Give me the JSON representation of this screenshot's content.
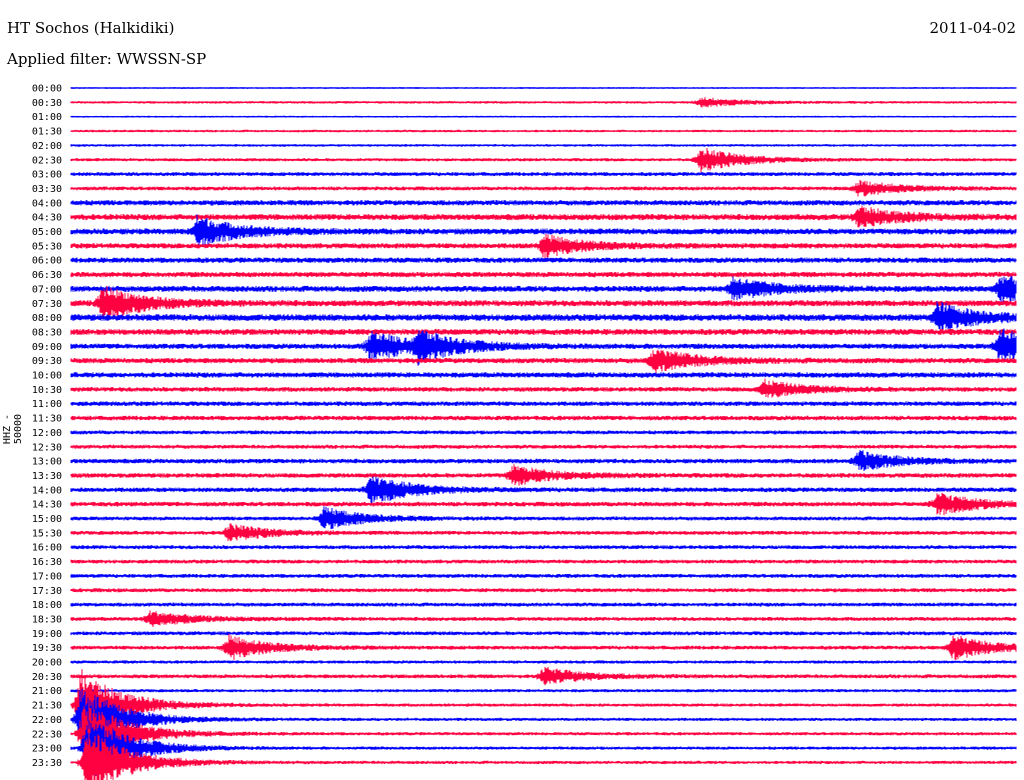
{
  "header": {
    "station": "HT Sochos (Halkidiki)",
    "date": "2011-04-02",
    "filter_label": "Applied filter: WWSSN-SP"
  },
  "channel_label": "HHZ - 50000",
  "colors": {
    "even_row": "#0000ff",
    "odd_row": "#ff0040"
  },
  "chart_data": {
    "type": "helicorder",
    "title": "HT Sochos (Halkidiki)",
    "ylabel": "HHZ - 50000",
    "row_interval_minutes": 30,
    "rows": [
      "00:00",
      "00:30",
      "01:00",
      "01:30",
      "02:00",
      "02:30",
      "03:00",
      "03:30",
      "04:00",
      "04:30",
      "05:00",
      "05:30",
      "06:00",
      "06:30",
      "07:00",
      "07:30",
      "08:00",
      "08:30",
      "09:00",
      "09:30",
      "10:00",
      "10:30",
      "11:00",
      "11:30",
      "12:00",
      "12:30",
      "13:00",
      "13:30",
      "14:00",
      "14:30",
      "15:00",
      "15:30",
      "16:00",
      "16:30",
      "17:00",
      "17:30",
      "18:00",
      "18:30",
      "19:00",
      "19:30",
      "20:00",
      "20:30",
      "21:00",
      "21:30",
      "22:00",
      "22:30",
      "23:00",
      "23:30"
    ],
    "noise_level": [
      0.1,
      0.2,
      0.1,
      0.2,
      0.2,
      0.3,
      0.4,
      0.4,
      0.6,
      0.7,
      0.7,
      0.6,
      0.6,
      0.6,
      0.7,
      0.7,
      0.8,
      0.7,
      0.6,
      0.6,
      0.6,
      0.5,
      0.5,
      0.5,
      0.4,
      0.4,
      0.5,
      0.5,
      0.5,
      0.5,
      0.4,
      0.4,
      0.4,
      0.4,
      0.4,
      0.4,
      0.4,
      0.4,
      0.4,
      0.4,
      0.3,
      0.4,
      0.3,
      0.3,
      0.3,
      0.3,
      0.3,
      0.3
    ],
    "events": [
      {
        "row": "00:30",
        "minute": 20,
        "amplitude": 0.4
      },
      {
        "row": "02:30",
        "minute": 20,
        "amplitude": 1.0
      },
      {
        "row": "03:30",
        "minute": 25,
        "amplitude": 0.6
      },
      {
        "row": "04:30",
        "minute": 25,
        "amplitude": 0.8
      },
      {
        "row": "05:00",
        "minute": 4,
        "amplitude": 1.2
      },
      {
        "row": "05:30",
        "minute": 15,
        "amplitude": 0.9
      },
      {
        "row": "07:00",
        "minute": 21,
        "amplitude": 0.9
      },
      {
        "row": "07:00",
        "minute": 29.5,
        "amplitude": 1.1
      },
      {
        "row": "07:30",
        "minute": 1,
        "amplitude": 1.4
      },
      {
        "row": "08:00",
        "minute": 27.5,
        "amplitude": 1.2
      },
      {
        "row": "09:00",
        "minute": 9.5,
        "amplitude": 1.3
      },
      {
        "row": "09:00",
        "minute": 11,
        "amplitude": 1.1
      },
      {
        "row": "09:00",
        "minute": 29.5,
        "amplitude": 1.5
      },
      {
        "row": "09:30",
        "minute": 18.5,
        "amplitude": 1.0
      },
      {
        "row": "10:30",
        "minute": 22,
        "amplitude": 0.7
      },
      {
        "row": "13:00",
        "minute": 25,
        "amplitude": 0.8
      },
      {
        "row": "13:30",
        "minute": 14,
        "amplitude": 0.8
      },
      {
        "row": "14:00",
        "minute": 9.5,
        "amplitude": 1.2
      },
      {
        "row": "14:30",
        "minute": 27.5,
        "amplitude": 0.9
      },
      {
        "row": "15:00",
        "minute": 8,
        "amplitude": 0.9
      },
      {
        "row": "15:30",
        "minute": 5,
        "amplitude": 0.7
      },
      {
        "row": "18:30",
        "minute": 2.5,
        "amplitude": 0.6
      },
      {
        "row": "19:30",
        "minute": 5,
        "amplitude": 1.0
      },
      {
        "row": "19:30",
        "minute": 28,
        "amplitude": 1.0
      },
      {
        "row": "20:30",
        "minute": 15,
        "amplitude": 0.7
      },
      {
        "row": "21:30",
        "minute": 0.3,
        "amplitude": 3.0
      },
      {
        "row": "22:00",
        "minute": 0.3,
        "amplitude": 3.0
      },
      {
        "row": "22:30",
        "minute": 0.4,
        "amplitude": 3.0
      },
      {
        "row": "23:00",
        "minute": 0.5,
        "amplitude": 3.0
      },
      {
        "row": "23:30",
        "minute": 0.5,
        "amplitude": 3.0
      }
    ]
  }
}
